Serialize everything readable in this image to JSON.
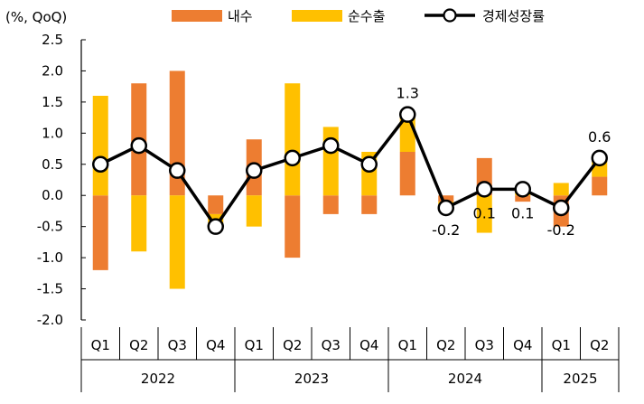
{
  "chart_data": {
    "type": "bar",
    "unit_label": "(%, QoQ)",
    "colors": {
      "domestic": "#ED7D31",
      "net_exports": "#FFC000",
      "growth_line": "#000000",
      "marker_fill": "#ffffff"
    },
    "legend": [
      {
        "key": "domestic",
        "label": "내수",
        "kind": "bar"
      },
      {
        "key": "net_exports",
        "label": "순수출",
        "kind": "bar"
      },
      {
        "key": "growth",
        "label": "경제성장률",
        "kind": "line"
      }
    ],
    "ylim": [
      -2.0,
      2.5
    ],
    "yticks": [
      "2.5",
      "2.0",
      "1.5",
      "1.0",
      "0.5",
      "0.0",
      "-0.5",
      "-1.0",
      "-1.5",
      "-2.0"
    ],
    "ytick_values": [
      2.5,
      2.0,
      1.5,
      1.0,
      0.5,
      0.0,
      -0.5,
      -1.0,
      -1.5,
      -2.0
    ],
    "categories": [
      "Q1",
      "Q2",
      "Q3",
      "Q4",
      "Q1",
      "Q2",
      "Q3",
      "Q4",
      "Q1",
      "Q2",
      "Q3",
      "Q4",
      "Q1",
      "Q2"
    ],
    "years": [
      {
        "label": "2022",
        "count": 4
      },
      {
        "label": "2023",
        "count": 4
      },
      {
        "label": "2024",
        "count": 4
      },
      {
        "label": "2025",
        "count": 2
      }
    ],
    "series": [
      {
        "name": "내수",
        "key": "domestic",
        "values": [
          -1.2,
          1.8,
          2.0,
          -0.3,
          0.9,
          -1.0,
          -0.3,
          -0.3,
          0.7,
          -0.1,
          0.6,
          -0.1,
          -0.5,
          0.3
        ]
      },
      {
        "name": "순수출",
        "key": "net_exports",
        "values": [
          1.6,
          -0.9,
          -1.5,
          -0.2,
          -0.5,
          1.8,
          1.1,
          0.7,
          0.6,
          -0.1,
          -0.6,
          0.1,
          0.2,
          0.3
        ]
      },
      {
        "name": "경제성장률",
        "key": "growth",
        "values": [
          0.5,
          0.8,
          0.4,
          -0.5,
          0.4,
          0.6,
          0.8,
          0.5,
          1.3,
          -0.2,
          0.1,
          0.1,
          -0.2,
          0.6
        ]
      }
    ],
    "data_labels": [
      {
        "index": 8,
        "text": "1.3"
      },
      {
        "index": 9,
        "text": "-0.2"
      },
      {
        "index": 10,
        "text": "0.1"
      },
      {
        "index": 11,
        "text": "0.1"
      },
      {
        "index": 12,
        "text": "-0.2"
      },
      {
        "index": 13,
        "text": "0.6"
      }
    ]
  }
}
